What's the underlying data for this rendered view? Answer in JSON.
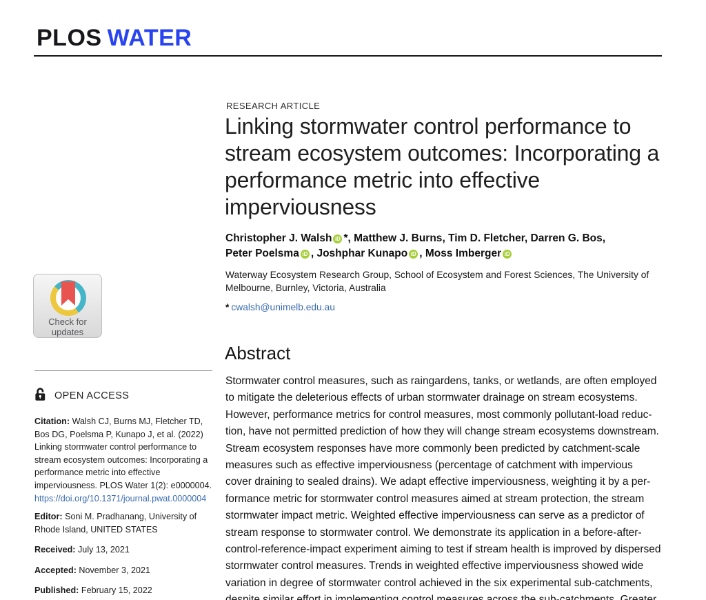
{
  "colors": {
    "brand_blue": "#2843F0",
    "link_blue": "#3C6CB0",
    "orcid_green": "#A6CE39",
    "crossmark_teal": "#45B6C8",
    "crossmark_yellow": "#EDC73D",
    "crossmark_red": "#E85450"
  },
  "icons": {
    "orcid_label": "iD"
  },
  "header": {
    "journal_plos": "PLOS",
    "journal_name": "WATER"
  },
  "sidebar": {
    "check_for_updates": "Check for\nupdates",
    "open_access": "OPEN ACCESS",
    "citation": {
      "label": "Citation:",
      "text": " Walsh CJ, Burns MJ, Fletcher TD, Bos DG, Poelsma P, Kunapo J, et al. (2022) Linking stormwater control performance to stream ecosystem outcomes: Incorporating a performance metric into effective imperviousness. PLOS Water 1(2): e0000004. ",
      "link": "https://doi.org/10.1371/journal.pwat.0000004"
    },
    "editor": {
      "label": "Editor:",
      "text": " Soni M. Pradhanang, University of Rhode Island, UNITED STATES"
    },
    "received": {
      "label": "Received:",
      "text": " July 13, 2021"
    },
    "accepted": {
      "label": "Accepted:",
      "text": " November 3, 2021"
    },
    "published": {
      "label": "Published:",
      "text": " February 15, 2022"
    }
  },
  "article": {
    "kicker": "RESEARCH ARTICLE",
    "title": "Linking stormwater control performance to\nstream ecosystem outcomes: Incorporating a\nperformance metric into effective\nimperviousness",
    "authors": [
      {
        "name": "Christopher J. Walsh",
        "orcid": true,
        "after": "*, "
      },
      {
        "name": "Matthew J. Burns",
        "orcid": false,
        "after": ", "
      },
      {
        "name": "Tim D. Fletcher",
        "orcid": false,
        "after": ", "
      },
      {
        "name": "Darren G. Bos",
        "orcid": false,
        "after": ",",
        "break_after": true
      },
      {
        "name": "Peter Poelsma",
        "orcid": true,
        "after": ", "
      },
      {
        "name": "Joshphar Kunapo",
        "orcid": true,
        "after": ", "
      },
      {
        "name": "Moss Imberger",
        "orcid": true,
        "after": ""
      }
    ],
    "affiliation": "Waterway Ecosystem Research Group, School of Ecosystem and Forest Sciences, The University of\nMelbourne, Burnley, Victoria, Australia",
    "corresponding": {
      "marker": "*",
      "email": "cwalsh@unimelb.edu.au"
    },
    "abstract": {
      "heading": "Abstract",
      "text": "Stormwater control measures, such as raingardens, tanks, or wetlands, are often employed\nto mitigate the deleterious effects of urban stormwater drainage on stream ecosystems.\nHowever, performance metrics for control measures, most commonly pollutant-load reduc-\ntion, have not permitted prediction of how they will change stream ecosystems downstream.\nStream ecosystem responses have more commonly been predicted by catchment-scale\nmeasures such as effective imperviousness (percentage of catchment with impervious\ncover draining to sealed drains). We adapt effective imperviousness, weighting it by a per-\nformance metric for stormwater control measures aimed at stream protection, the stream\nstormwater impact metric. Weighted effective imperviousness can serve as a predictor of\nstream response to stormwater control. We demonstrate its application in a before-after-\ncontrol-reference-impact experiment aiming to test if stream health is improved by dispersed\nstormwater control measures. Trends in weighted effective imperviousness showed wide\nvariation in degree of stormwater control achieved in the six experimental sub-catchments,\ndespite similar effort in implementing control measures across the sub-catchments. Greater"
    }
  }
}
